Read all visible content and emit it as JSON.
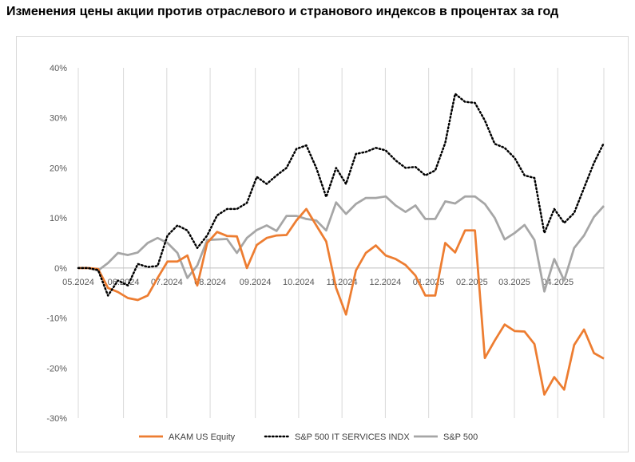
{
  "title": "Изменения цены акции против отраслевого и странового индексов  в процентах за год",
  "chart_data": {
    "type": "line",
    "ylim": [
      -30,
      40
    ],
    "y_ticks": [
      40,
      30,
      20,
      10,
      0,
      -10,
      -20,
      -30
    ],
    "y_tick_labels": [
      "40%",
      "30%",
      "20%",
      "10%",
      "0%",
      "-10%",
      "-20%",
      "-30%"
    ],
    "x_min": 0,
    "x_max": 57,
    "x_tick_positions": [
      0,
      4.9,
      9.6,
      14.3,
      19.2,
      23.9,
      28.6,
      33.3,
      38,
      42.7,
      47.3,
      52,
      57
    ],
    "x_tick_labels": [
      "05.2024",
      "06.2024",
      "07.2024",
      "08.2024",
      "09.2024",
      "10.2024",
      "11.2024",
      "12.2024",
      "01.2025",
      "02.2025",
      "03.2025",
      "04.2025"
    ],
    "series": [
      {
        "name": "AKAM US Equity",
        "color": "#ed7d31",
        "dash": "solid",
        "values": [
          0,
          0,
          -0.2,
          -4,
          -4.8,
          -6,
          -6.4,
          -5.5,
          -2,
          1.3,
          1.3,
          2.5,
          -3.5,
          5,
          7.2,
          6.4,
          6.3,
          0,
          4.6,
          6,
          6.5,
          6.6,
          9.5,
          11.8,
          8.5,
          5.3,
          -4,
          -9.3,
          -0.5,
          3,
          4.5,
          2.5,
          1.8,
          0.6,
          -1.5,
          -5.5,
          -5.5,
          5,
          3.1,
          7.5,
          7.5,
          -18,
          -14.5,
          -11.3,
          -12.6,
          -12.7,
          -15.2,
          -25.3,
          -21.8,
          -24.3,
          -15.4,
          -12.3,
          -17,
          -18.1
        ]
      },
      {
        "name": "S&P 500 IT SERVICES INDX",
        "color": "#000000",
        "dash": "dotted",
        "values": [
          0,
          0,
          -0.4,
          -5.5,
          -2.5,
          -3.5,
          0.8,
          0.2,
          0.4,
          6.5,
          8.5,
          7.5,
          4,
          6.5,
          10.5,
          11.8,
          11.8,
          13,
          18.2,
          16.8,
          18.5,
          20,
          23.8,
          24.5,
          20,
          14.2,
          20,
          16.8,
          22.8,
          23.2,
          24,
          23.5,
          21.5,
          20,
          20.2,
          18.5,
          19.5,
          25,
          34.8,
          33.2,
          33,
          29.5,
          24.8,
          24,
          22,
          18.5,
          18,
          7,
          11.8,
          9,
          11,
          16,
          21,
          25
        ]
      },
      {
        "name": "S&P 500",
        "color": "#a6a6a6",
        "dash": "solid",
        "values": [
          0,
          0,
          -0.5,
          1,
          3,
          2.6,
          3.1,
          5,
          6,
          5,
          3,
          -2,
          0.5,
          5.6,
          5.7,
          5.8,
          3,
          6,
          7.6,
          8.5,
          7.4,
          10.4,
          10.4,
          9.8,
          9.5,
          7.5,
          13.1,
          10.8,
          12.8,
          14,
          14,
          14.3,
          12.5,
          11.2,
          12.5,
          9.8,
          9.8,
          13.3,
          12.9,
          14.3,
          14.3,
          12.8,
          10,
          5.7,
          7,
          8.6,
          5.6,
          -4.7,
          1.8,
          -2.5,
          4,
          6.5,
          10.2,
          12.4
        ]
      }
    ],
    "legend_position": "bottom",
    "grid": "vertical"
  }
}
